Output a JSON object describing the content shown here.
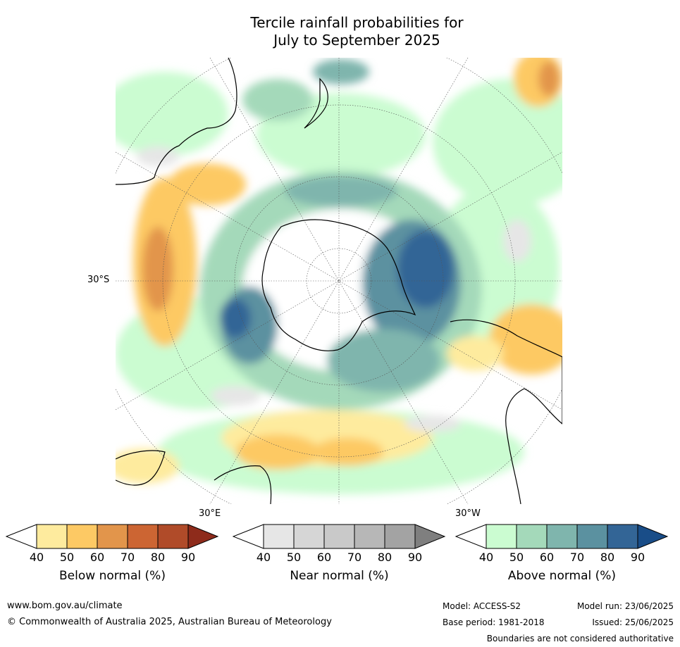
{
  "title": {
    "line1": "Tercile rainfall probabilities for",
    "line2": "July to September 2025"
  },
  "map": {
    "latitude_labels": [
      "30°S"
    ],
    "longitude_labels": [
      "30°E",
      "30°W"
    ],
    "land_outline_color": "#000000",
    "background_color": "#ffffff"
  },
  "legends": [
    {
      "title": "Below normal (%)",
      "ticks": [
        "40",
        "50",
        "60",
        "70",
        "80",
        "90"
      ],
      "colors": [
        "#ffffff",
        "#feeb9e",
        "#fdc964",
        "#e2954b",
        "#cc6533",
        "#b04b29",
        "#8e2b1b"
      ]
    },
    {
      "title": "Near normal (%)",
      "ticks": [
        "40",
        "50",
        "60",
        "70",
        "80",
        "90"
      ],
      "colors": [
        "#ffffff",
        "#e6e6e6",
        "#d6d6d6",
        "#c9c9c9",
        "#b7b7b7",
        "#a3a3a3",
        "#7f7f7f"
      ]
    },
    {
      "title": "Above normal (%)",
      "ticks": [
        "40",
        "50",
        "60",
        "70",
        "80",
        "90"
      ],
      "colors": [
        "#ffffff",
        "#cbfcd1",
        "#a4d9ba",
        "#7fb5ad",
        "#5b91a0",
        "#336596",
        "#194d88"
      ]
    }
  ],
  "footer": {
    "website": "www.bom.gov.au/climate",
    "copyright": "© Commonwealth of Australia 2025, Australian Bureau of Meteorology",
    "model": "Model: ACCESS-S2",
    "base_period": "Base period: 1981-2018",
    "model_run": "Model run: 23/06/2025",
    "issued": "Issued: 25/06/2025",
    "disclaimer": "Boundaries are not considered authoritative"
  }
}
